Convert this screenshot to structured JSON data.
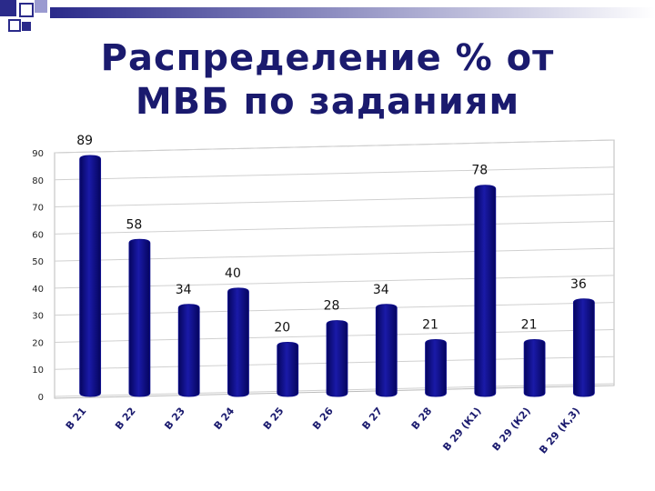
{
  "chart_data": {
    "type": "bar",
    "title": "Распределение % от МВБ по заданиям",
    "categories": [
      "В 21",
      "В 22",
      "В 23",
      "В 24",
      "В 25",
      "В 26",
      "В 27",
      "В 28",
      "В 29 (К1)",
      "В 29 (К2)",
      "В 29 (К,3)"
    ],
    "values": [
      89,
      58,
      34,
      40,
      20,
      28,
      34,
      21,
      78,
      21,
      36
    ],
    "color": "#0c0c8a",
    "ylim": [
      0,
      90
    ],
    "yticks": [
      0,
      10,
      20,
      30,
      40,
      50,
      60,
      70,
      80,
      90
    ],
    "grid": true
  }
}
